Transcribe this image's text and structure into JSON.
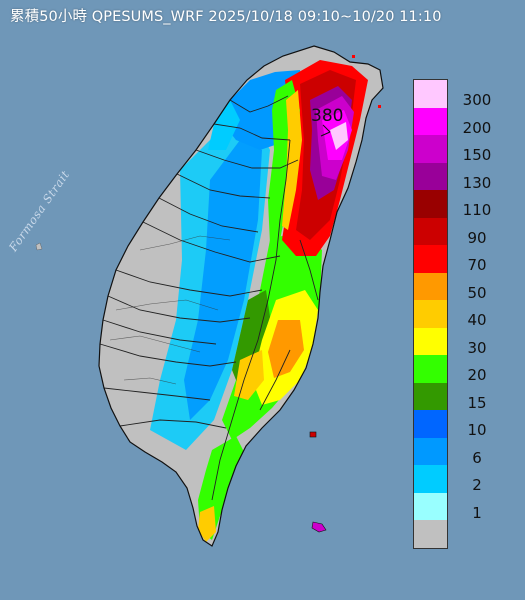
{
  "title": "累積50小時 QPESUMS_WRF 2025/10/18 09:10~10/20 11:10",
  "sea_label": "Formosa Strait",
  "max_value_label": "380",
  "legend": {
    "levels": [
      "300",
      "200",
      "150",
      "130",
      "110",
      "90",
      "70",
      "50",
      "40",
      "30",
      "20",
      "15",
      "10",
      "6",
      "2",
      "1"
    ],
    "colors": [
      "#ffc8ff",
      "#ff00ff",
      "#cc00cc",
      "#990099",
      "#990000",
      "#cc0000",
      "#ff0000",
      "#ff9900",
      "#ffcc00",
      "#ffff00",
      "#33ff00",
      "#339900",
      "#0066ff",
      "#0099ff",
      "#00ccff",
      "#99ffff",
      "#c0c0c0"
    ]
  },
  "colors": {
    "sea": "#6f97b8",
    "land_no_rain": "#c0c0c0",
    "border": "#222222"
  }
}
